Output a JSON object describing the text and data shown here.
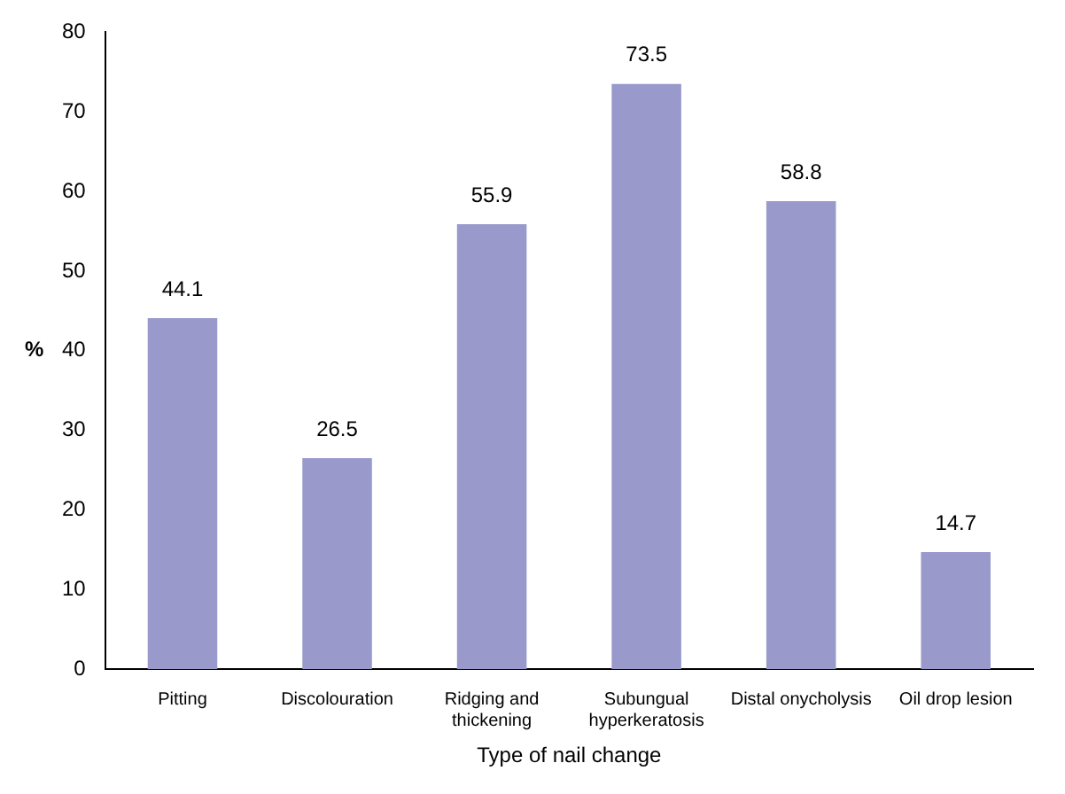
{
  "chart_data": {
    "type": "bar",
    "xlabel": "Type of nail change",
    "ylabel": "%",
    "categories": [
      "Pitting",
      "Discolouration",
      "Ridging and thickening",
      "Subungual hyperkeratosis",
      "Distal onycholysis",
      "Oil drop lesion"
    ],
    "values": [
      44.1,
      26.5,
      55.9,
      73.5,
      58.8,
      14.7
    ],
    "color": "#9999cc",
    "ylim": [
      0,
      80
    ],
    "yticks": [
      0,
      10,
      20,
      30,
      40,
      50,
      60,
      70,
      80
    ],
    "grid": false,
    "legend": false,
    "data_labels": true
  }
}
